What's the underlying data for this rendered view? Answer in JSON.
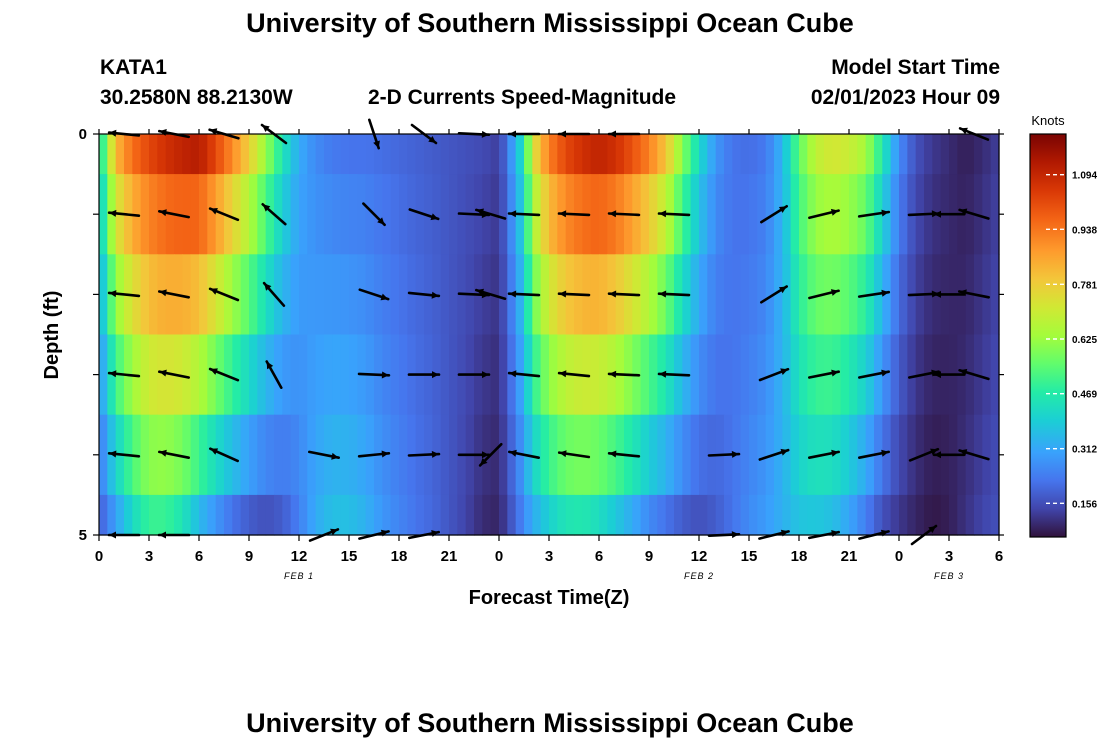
{
  "header": {
    "title": "University of Southern Mississippi Ocean Cube",
    "station": "KATA1",
    "coords": "30.2580N  88.2130W",
    "chart_title": "2-D Currents Speed-Magnitude",
    "model_label": "Model Start Time",
    "model_time": "02/01/2023 Hour 09"
  },
  "footer": {
    "title": "University of Southern Mississippi Ocean Cube"
  },
  "chart_data": {
    "type": "heatmap",
    "title": "2-D Currents Speed-Magnitude",
    "xlabel": "Forecast Time(Z)",
    "ylabel": "Depth (ft)",
    "x_range_hours": [
      0,
      54
    ],
    "x_ticks": [
      "0",
      "3",
      "6",
      "9",
      "12",
      "15",
      "18",
      "21",
      "0",
      "3",
      "6",
      "9",
      "12",
      "15",
      "18",
      "21",
      "0",
      "3",
      "6"
    ],
    "date_labels": [
      {
        "label": "FEB 1",
        "hour": 12
      },
      {
        "label": "FEB 2",
        "hour": 36
      },
      {
        "label": "FEB 3",
        "hour": 51
      }
    ],
    "y_ticks": [
      "0",
      "5"
    ],
    "depth_range_ft": [
      0,
      5
    ],
    "depth_levels_ft": [
      0,
      1,
      2,
      3,
      4,
      5
    ],
    "colorbar": {
      "unit": "Knots",
      "ticks": [
        "0.156",
        "0.312",
        "0.469",
        "0.625",
        "0.781",
        "0.938",
        "1.094"
      ],
      "range": [
        0.06,
        1.21
      ]
    },
    "speed_profile_surface": [
      [
        0,
        0.4
      ],
      [
        0.5,
        0.62
      ],
      [
        1,
        0.82
      ],
      [
        2,
        0.95
      ],
      [
        3,
        1.02
      ],
      [
        4,
        1.07
      ],
      [
        5,
        1.1
      ],
      [
        6,
        1.12
      ],
      [
        7,
        1.02
      ],
      [
        8,
        0.9
      ],
      [
        9,
        0.78
      ],
      [
        10,
        0.62
      ],
      [
        11,
        0.45
      ],
      [
        12,
        0.32
      ],
      [
        13,
        0.26
      ],
      [
        14,
        0.23
      ],
      [
        15,
        0.22
      ],
      [
        16,
        0.22
      ],
      [
        17,
        0.21
      ],
      [
        18,
        0.2
      ],
      [
        19,
        0.19
      ],
      [
        20,
        0.18
      ],
      [
        21,
        0.17
      ],
      [
        22,
        0.16
      ],
      [
        23,
        0.15
      ],
      [
        24,
        0.13
      ],
      [
        24.5,
        0.22
      ],
      [
        25,
        0.34
      ],
      [
        25.5,
        0.45
      ],
      [
        26,
        0.72
      ],
      [
        27,
        0.92
      ],
      [
        28,
        1.02
      ],
      [
        29,
        1.07
      ],
      [
        30,
        1.1
      ],
      [
        31,
        1.07
      ],
      [
        32,
        1.0
      ],
      [
        33,
        0.92
      ],
      [
        34,
        0.8
      ],
      [
        35,
        0.6
      ],
      [
        36,
        0.42
      ],
      [
        37,
        0.28
      ],
      [
        38,
        0.22
      ],
      [
        39,
        0.21
      ],
      [
        40,
        0.23
      ],
      [
        41,
        0.34
      ],
      [
        42,
        0.55
      ],
      [
        43,
        0.68
      ],
      [
        44,
        0.72
      ],
      [
        45,
        0.7
      ],
      [
        46,
        0.64
      ],
      [
        47,
        0.46
      ],
      [
        48,
        0.26
      ],
      [
        49,
        0.16
      ],
      [
        50,
        0.12
      ],
      [
        51,
        0.1
      ],
      [
        52,
        0.08
      ],
      [
        53,
        0.1
      ],
      [
        54,
        0.13
      ]
    ],
    "speed_profile_bottom": [
      [
        0,
        0.18
      ],
      [
        1,
        0.3
      ],
      [
        2,
        0.42
      ],
      [
        3,
        0.5
      ],
      [
        4,
        0.5
      ],
      [
        5,
        0.45
      ],
      [
        6,
        0.35
      ],
      [
        7,
        0.28
      ],
      [
        8,
        0.22
      ],
      [
        9,
        0.18
      ],
      [
        10,
        0.16
      ],
      [
        11,
        0.18
      ],
      [
        12,
        0.24
      ],
      [
        13,
        0.32
      ],
      [
        14,
        0.36
      ],
      [
        15,
        0.36
      ],
      [
        16,
        0.33
      ],
      [
        17,
        0.28
      ],
      [
        18,
        0.25
      ],
      [
        19,
        0.22
      ],
      [
        20,
        0.2
      ],
      [
        21,
        0.17
      ],
      [
        22,
        0.14
      ],
      [
        23,
        0.1
      ],
      [
        24,
        0.09
      ],
      [
        25,
        0.2
      ],
      [
        26,
        0.32
      ],
      [
        27,
        0.4
      ],
      [
        28,
        0.45
      ],
      [
        29,
        0.46
      ],
      [
        30,
        0.43
      ],
      [
        31,
        0.38
      ],
      [
        32,
        0.32
      ],
      [
        33,
        0.26
      ],
      [
        34,
        0.22
      ],
      [
        35,
        0.18
      ],
      [
        36,
        0.16
      ],
      [
        37,
        0.18
      ],
      [
        38,
        0.22
      ],
      [
        39,
        0.26
      ],
      [
        40,
        0.29
      ],
      [
        41,
        0.33
      ],
      [
        42,
        0.37
      ],
      [
        43,
        0.38
      ],
      [
        44,
        0.36
      ],
      [
        45,
        0.31
      ],
      [
        46,
        0.24
      ],
      [
        47,
        0.16
      ],
      [
        48,
        0.12
      ],
      [
        49,
        0.09
      ],
      [
        50,
        0.07
      ],
      [
        51,
        0.08
      ],
      [
        52,
        0.11
      ],
      [
        53,
        0.14
      ],
      [
        54,
        0.16
      ]
    ],
    "vectors_by_hour": [
      {
        "hour": 1.5,
        "u": [
          -1,
          -1,
          -1,
          -1,
          -1,
          -1
        ],
        "v": [
          0.1,
          0.1,
          0.1,
          0.1,
          0.1,
          0
        ]
      },
      {
        "hour": 4.5,
        "u": [
          -1,
          -1,
          -1,
          -1,
          -1,
          -0.8
        ],
        "v": [
          0.2,
          0.2,
          0.2,
          0.2,
          0.2,
          0
        ]
      },
      {
        "hour": 7.5,
        "u": [
          -1,
          -1,
          -1,
          -1,
          -0.9,
          0
        ],
        "v": [
          0.3,
          0.4,
          0.4,
          0.4,
          0.4,
          0
        ]
      },
      {
        "hour": 10.5,
        "u": [
          -0.8,
          -0.8,
          -0.7,
          -0.5,
          0,
          0
        ],
        "v": [
          0.6,
          0.7,
          0.8,
          0.9,
          0,
          0
        ]
      },
      {
        "hour": 13.5,
        "u": [
          0,
          0,
          0,
          0,
          1,
          1
        ],
        "v": [
          0,
          0,
          0,
          0,
          -0.2,
          0.4
        ]
      },
      {
        "hour": 16.5,
        "u": [
          0.3,
          0.6,
          0.9,
          1,
          1,
          1
        ],
        "v": [
          -0.9,
          -0.6,
          -0.3,
          -0.05,
          0.1,
          0.25
        ]
      },
      {
        "hour": 19.5,
        "u": [
          0.8,
          0.9,
          1,
          1,
          1,
          1
        ],
        "v": [
          -0.6,
          -0.3,
          -0.1,
          0,
          0.05,
          0.2
        ]
      },
      {
        "hour": 22.5,
        "u": [
          1,
          1,
          1,
          1,
          1,
          0
        ],
        "v": [
          -0.05,
          -0.05,
          -0.05,
          0,
          0,
          0
        ]
      },
      {
        "hour": 23.5,
        "u": [
          0,
          -1,
          -1,
          0,
          -0.7,
          0
        ],
        "v": [
          0,
          0.3,
          0.3,
          0,
          -0.7,
          0
        ]
      },
      {
        "hour": 25.5,
        "u": [
          -1,
          -1,
          -1,
          -1,
          -1,
          0
        ],
        "v": [
          0,
          0.05,
          0.05,
          0.1,
          0.2,
          0
        ]
      },
      {
        "hour": 28.5,
        "u": [
          -1,
          -1,
          -1,
          -1,
          -1,
          0
        ],
        "v": [
          0,
          0.05,
          0.05,
          0.1,
          0.15,
          0
        ]
      },
      {
        "hour": 31.5,
        "u": [
          -1,
          -1,
          -1,
          -1,
          -1,
          0
        ],
        "v": [
          0,
          0.05,
          0.05,
          0.05,
          0.1,
          0
        ]
      },
      {
        "hour": 34.5,
        "u": [
          0,
          -1,
          -1,
          -1,
          0,
          0
        ],
        "v": [
          0,
          0.05,
          0.05,
          0.05,
          0,
          0
        ]
      },
      {
        "hour": 37.5,
        "u": [
          0,
          0,
          0,
          0,
          1,
          1
        ],
        "v": [
          0,
          0,
          0,
          0,
          0.05,
          0.05
        ]
      },
      {
        "hour": 40.5,
        "u": [
          0,
          0.8,
          0.8,
          0.9,
          0.9,
          1
        ],
        "v": [
          0,
          0.5,
          0.5,
          0.35,
          0.3,
          0.25
        ]
      },
      {
        "hour": 43.5,
        "u": [
          0,
          1,
          1,
          1,
          1,
          1
        ],
        "v": [
          0,
          0.25,
          0.25,
          0.2,
          0.2,
          0.2
        ]
      },
      {
        "hour": 46.5,
        "u": [
          0,
          1,
          1,
          1,
          1,
          1
        ],
        "v": [
          0,
          0.15,
          0.15,
          0.2,
          0.2,
          0.25
        ]
      },
      {
        "hour": 49.5,
        "u": [
          0,
          1,
          1,
          1,
          1,
          0.8
        ],
        "v": [
          0,
          0.05,
          0.05,
          0.2,
          0.4,
          0.6
        ]
      },
      {
        "hour": 51,
        "u": [
          0,
          -1,
          -1,
          -1,
          -1,
          0
        ],
        "v": [
          0,
          0,
          0,
          0,
          0,
          0
        ]
      },
      {
        "hour": 52.5,
        "u": [
          -1,
          -1,
          -1,
          -1,
          -1,
          0
        ],
        "v": [
          0.4,
          0.3,
          0.2,
          0.3,
          0.3,
          0
        ]
      }
    ]
  }
}
